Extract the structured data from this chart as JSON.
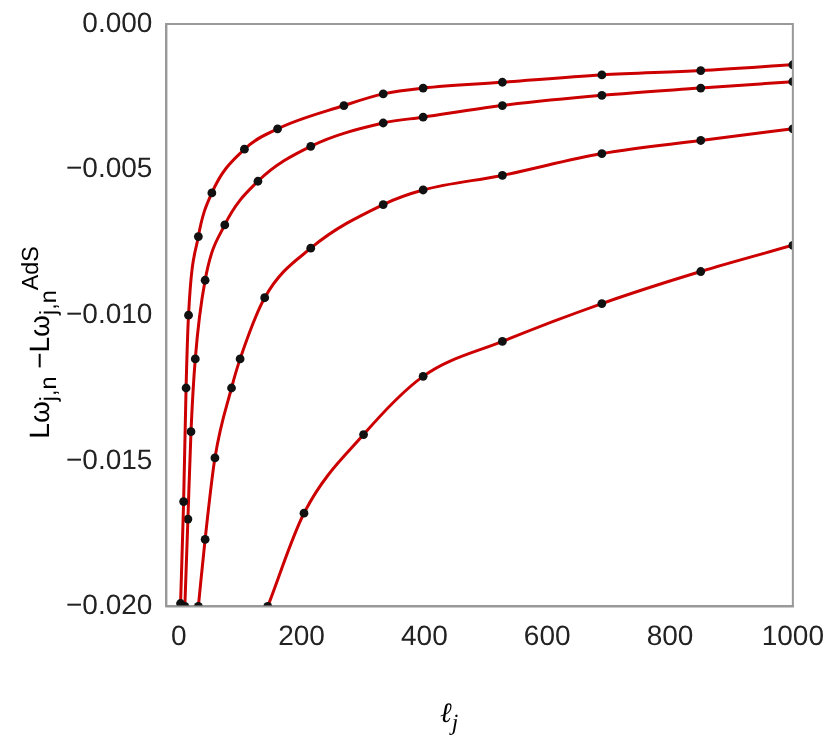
{
  "chart_data": {
    "type": "line",
    "xlabel": "ℓ$_{j}$",
    "ylabel": "Lω$_{j,n}$ −Lω$_{j,n}$$^{AdS}$",
    "xlim": [
      -20,
      1000
    ],
    "xticks": [
      0,
      200,
      400,
      600,
      800,
      1000
    ],
    "ylim": [
      -0.02,
      0
    ],
    "yticks": [
      {
        "value": -0.02,
        "label": "−0.020"
      },
      {
        "value": -0.015,
        "label": "−0.015"
      },
      {
        "value": -0.01,
        "label": "−0.010"
      },
      {
        "value": -0.005,
        "label": "−0.005"
      },
      {
        "value": 0,
        "label": "0.000"
      }
    ],
    "marker": "circle",
    "grid": false,
    "legend": false,
    "series": [
      {
        "color": "#cc0000",
        "x": [
          3,
          8,
          12,
          16,
          32,
          54,
          107,
          161,
          269,
          333,
          398,
          527,
          689,
          850,
          1000
        ],
        "values": [
          -0.0199,
          -0.0164,
          -0.0125,
          -0.01,
          -0.0073,
          -0.0058,
          -0.0043,
          -0.0036,
          -0.0028,
          -0.0024,
          -0.0022,
          -0.002,
          -0.00175,
          -0.0016,
          -0.0014
        ]
      },
      {
        "color": "#cc0000",
        "x": [
          10,
          15,
          20,
          27,
          43,
          75,
          129,
          215,
          333,
          398,
          527,
          689,
          850,
          1000
        ],
        "values": [
          -0.02,
          -0.017,
          -0.014,
          -0.0115,
          -0.0088,
          -0.0069,
          -0.0054,
          -0.0042,
          -0.0034,
          -0.0032,
          -0.0028,
          -0.00245,
          -0.0022,
          -0.00198
        ]
      },
      {
        "color": "#cc0000",
        "x": [
          32,
          43,
          59,
          86,
          100,
          140,
          215,
          333,
          398,
          527,
          689,
          850,
          1000
        ],
        "values": [
          -0.02,
          -0.0177,
          -0.0149,
          -0.0125,
          -0.0115,
          -0.0094,
          -0.0077,
          -0.0062,
          -0.0057,
          -0.0052,
          -0.00445,
          -0.004,
          -0.0036
        ]
      },
      {
        "color": "#cc0000",
        "x": [
          145,
          204,
          301,
          398,
          527,
          689,
          850,
          1000
        ],
        "values": [
          -0.02,
          -0.0168,
          -0.0141,
          -0.0121,
          -0.0109,
          -0.0096,
          -0.0085,
          -0.0076
        ]
      }
    ]
  }
}
